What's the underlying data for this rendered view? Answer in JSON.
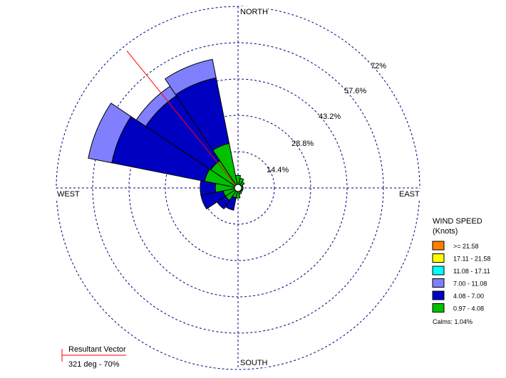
{
  "chart_data": {
    "type": "wind-rose",
    "directions": {
      "north": "NORTH",
      "south": "SOUTH",
      "east": "EAST",
      "west": "WEST"
    },
    "rings": [
      {
        "value": 14.4,
        "label": "14.4%"
      },
      {
        "value": 28.8,
        "label": "28.8%"
      },
      {
        "value": 43.2,
        "label": "43.2%"
      },
      {
        "value": 57.6,
        "label": "57.6%"
      },
      {
        "value": 72.0,
        "label": "72%"
      }
    ],
    "sector_width_deg": 22.5,
    "speed_classes": [
      "0.97 - 4.08",
      "4.08 - 7.00",
      "7.00 - 11.08"
    ],
    "sectors": [
      {
        "direction_deg": 292.5,
        "cumulative": [
          13.5,
          51.0,
          60.5
        ]
      },
      {
        "direction_deg": 315.0,
        "cumulative": [
          13.0,
          44.0,
          48.5
        ]
      },
      {
        "direction_deg": 337.5,
        "cumulative": [
          18.0,
          44.5,
          52.0
        ]
      },
      {
        "direction_deg": 270.0,
        "cumulative": [
          9.0,
          15.0,
          15.0
        ]
      },
      {
        "direction_deg": 247.5,
        "cumulative": [
          6.0,
          15.0,
          15.0
        ]
      },
      {
        "direction_deg": 225.0,
        "cumulative": [
          6.0,
          10.0,
          10.0
        ]
      },
      {
        "direction_deg": 202.5,
        "cumulative": [
          4.0,
          9.0,
          9.0
        ]
      },
      {
        "direction_deg": 180.0,
        "cumulative": [
          4.0,
          4.0,
          4.0
        ]
      },
      {
        "direction_deg": 157.5,
        "cumulative": [
          2.5,
          2.5,
          2.5
        ]
      },
      {
        "direction_deg": 135.0,
        "cumulative": [
          2.0,
          2.0,
          2.0
        ]
      },
      {
        "direction_deg": 112.5,
        "cumulative": [
          2.0,
          2.0,
          2.0
        ]
      },
      {
        "direction_deg": 90.0,
        "cumulative": [
          2.0,
          2.0,
          2.0
        ]
      },
      {
        "direction_deg": 67.5,
        "cumulative": [
          2.0,
          2.0,
          2.0
        ]
      },
      {
        "direction_deg": 45.0,
        "cumulative": [
          3.0,
          3.0,
          3.0
        ]
      },
      {
        "direction_deg": 22.5,
        "cumulative": [
          4.0,
          4.0,
          4.0
        ]
      },
      {
        "direction_deg": 0.0,
        "cumulative": [
          5.0,
          5.0,
          5.0
        ]
      }
    ],
    "resultant_vector": {
      "direction_deg": 321,
      "magnitude": 70,
      "label": "Resultant Vector",
      "value_label": "321 deg - 70%"
    },
    "legend": {
      "title_line1": "WIND SPEED",
      "title_line2": "(Knots)",
      "placement": "right",
      "entries": [
        {
          "label": ">= 21.58",
          "color": "#ff7f00"
        },
        {
          "label": "17.11 - 21.58",
          "color": "#ffff00"
        },
        {
          "label": "11.08 - 17.11",
          "color": "#00ffff"
        },
        {
          "label": "7.00 - 11.08",
          "color": "#8080ff"
        },
        {
          "label": "4.08 - 7.00",
          "color": "#0000c0"
        },
        {
          "label": "0.97 - 4.08",
          "color": "#00c000"
        }
      ],
      "calms": "Calms: 1.04%"
    },
    "band_colors": [
      "#00c000",
      "#0000c0",
      "#8080ff"
    ],
    "grid_color": "#000080",
    "vector_color": "#ff0000"
  }
}
